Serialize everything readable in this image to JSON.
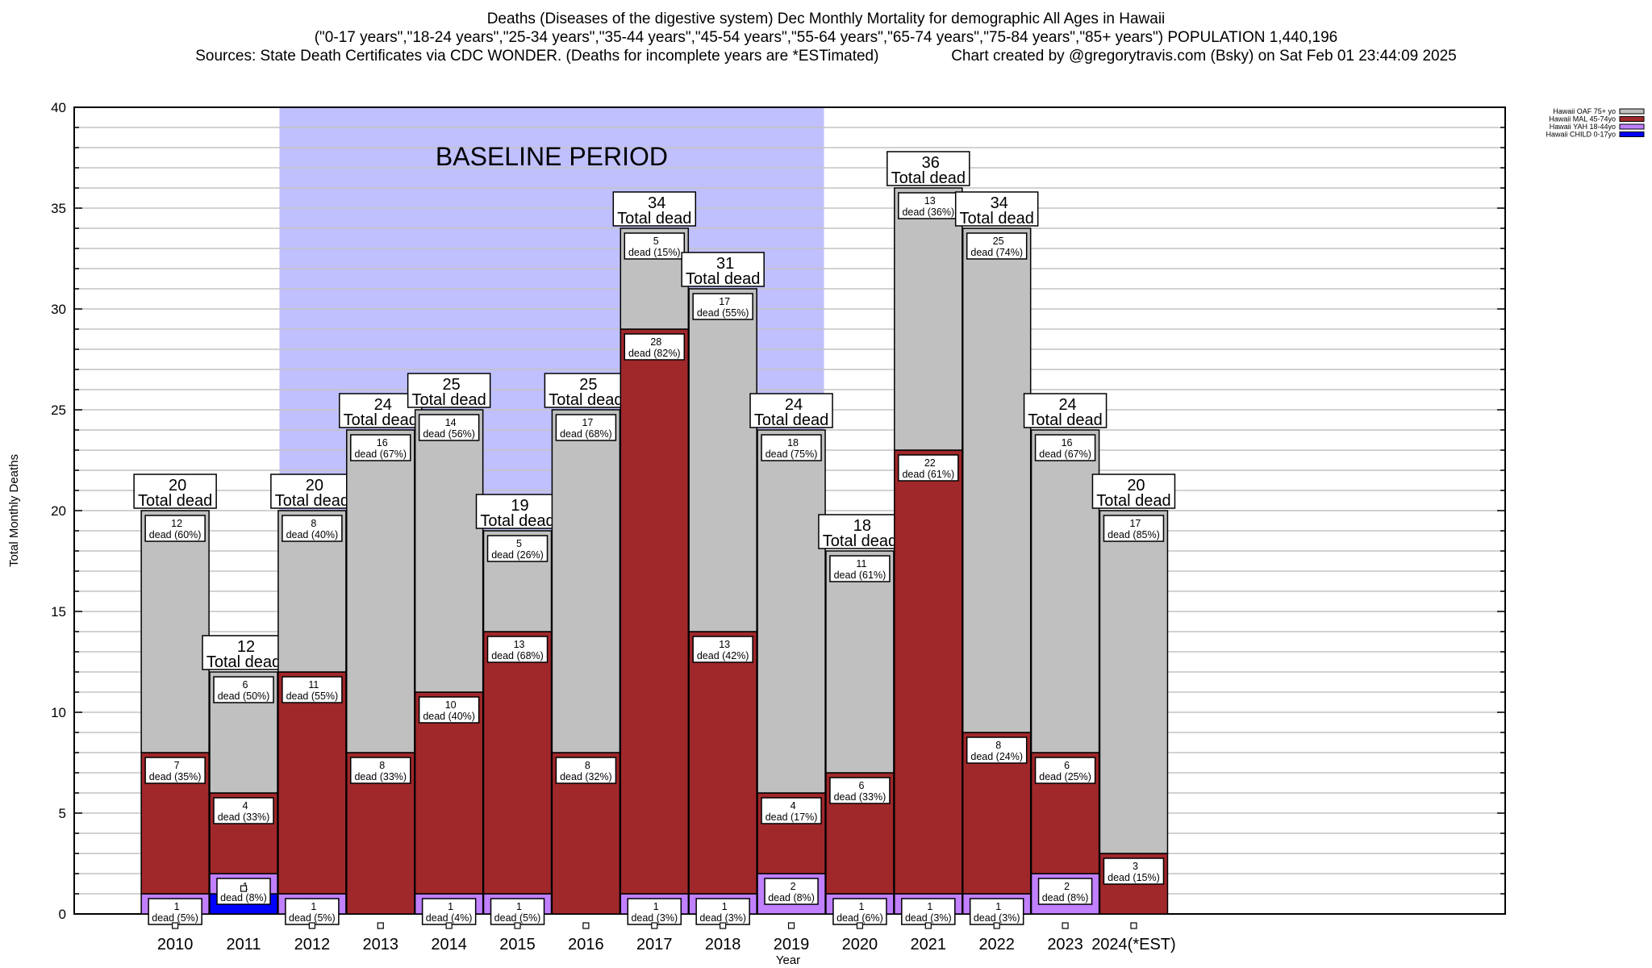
{
  "header": {
    "title_line1": "Deaths (Diseases of the digestive system) Dec Monthly Mortality for demographic All Ages in Hawaii",
    "title_line2": "(\"0-17 years\",\"18-24 years\",\"25-34 years\",\"35-44 years\",\"45-54 years\",\"55-64 years\",\"65-74 years\",\"75-84 years\",\"85+ years\") POPULATION 1,440,196",
    "title_line3_left": "Sources: State Death Certificates via CDC WONDER. (Deaths for incomplete years are *ESTimated)",
    "title_line3_right": "Chart created by @gregorytravis.com (Bsky) on Sat Feb 01 23:44:09 2025"
  },
  "chart_data": {
    "type": "bar",
    "stacked": true,
    "title": "Deaths (Diseases of the digestive system) Dec Monthly Mortality for demographic All Ages in Hawaii",
    "xlabel": "Year",
    "ylabel": "Total Monthly Deaths",
    "ylim": [
      0,
      40
    ],
    "yticks": [
      0,
      5,
      10,
      15,
      20,
      25,
      30,
      35,
      40
    ],
    "grid": true,
    "legend_position": "top-right",
    "categories": [
      "2010",
      "2011",
      "2012",
      "2013",
      "2014",
      "2015",
      "2016",
      "2017",
      "2018",
      "2019",
      "2020",
      "2021",
      "2022",
      "2023",
      "2024(*EST)"
    ],
    "series": [
      {
        "name": "Hawaii CHILD 0-17yo",
        "color": "#0000ff",
        "values": [
          0,
          1,
          0,
          0,
          0,
          0,
          0,
          0,
          0,
          0,
          0,
          0,
          0,
          0,
          0
        ]
      },
      {
        "name": "Hawaii YAH 18-44yo",
        "color": "#c080ff",
        "values": [
          1,
          1,
          1,
          0,
          1,
          1,
          0,
          1,
          1,
          2,
          1,
          1,
          1,
          2,
          0
        ]
      },
      {
        "name": "Hawaii MAL 45-74yo",
        "color": "#a0282b",
        "values": [
          7,
          4,
          11,
          8,
          10,
          13,
          8,
          28,
          13,
          4,
          6,
          22,
          8,
          6,
          3
        ]
      },
      {
        "name": "Hawaii OAF 75+ yo",
        "color": "#c0c0c0",
        "values": [
          12,
          6,
          8,
          16,
          14,
          5,
          17,
          5,
          17,
          18,
          11,
          13,
          25,
          16,
          17
        ]
      }
    ],
    "totals": [
      20,
      12,
      20,
      24,
      25,
      19,
      25,
      34,
      31,
      24,
      18,
      36,
      34,
      24,
      20
    ],
    "segment_labels": {
      "Hawaii CHILD 0-17yo": [
        "",
        "",
        "",
        "",
        "",
        "",
        "",
        "",
        "",
        "",
        "",
        "",
        "",
        "",
        ""
      ],
      "Hawaii YAH 18-44yo": [
        "dead (5%)",
        "dead (8%)",
        "dead (5%)",
        "",
        "dead (4%)",
        "dead (5%)",
        "",
        "dead (3%)",
        "dead (3%)",
        "dead (8%)",
        "dead (6%)",
        "dead (3%)",
        "dead (3%)",
        "dead (8%)",
        ""
      ],
      "Hawaii MAL 45-74yo": [
        "dead (35%)",
        "dead (33%)",
        "dead (55%)",
        "dead (33%)",
        "dead (40%)",
        "dead (68%)",
        "dead (32%)",
        "dead (82%)",
        "dead (42%)",
        "dead (17%)",
        "dead (33%)",
        "dead (61%)",
        "dead (24%)",
        "dead (25%)",
        "dead (15%)"
      ],
      "Hawaii OAF 75+ yo": [
        "dead (60%)",
        "dead (50%)",
        "dead (40%)",
        "dead (67%)",
        "dead (56%)",
        "dead (26%)",
        "dead (68%)",
        "dead (15%)",
        "dead (55%)",
        "dead (75%)",
        "dead (61%)",
        "dead (36%)",
        "dead (74%)",
        "dead (67%)",
        "dead (85%)"
      ]
    },
    "total_label_suffix": "Total dead",
    "annotation": {
      "text": "BASELINE PERIOD",
      "from_category": "2012",
      "to_category": "2019",
      "color": "#c0c0ff"
    }
  }
}
